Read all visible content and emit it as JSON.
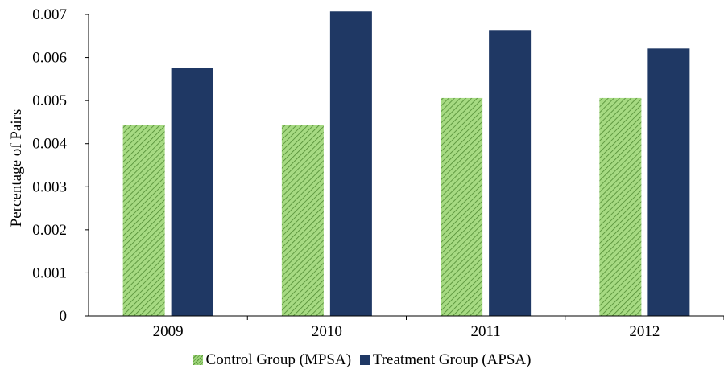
{
  "chart_data": {
    "type": "bar",
    "categories": [
      "2009",
      "2010",
      "2011",
      "2012"
    ],
    "series": [
      {
        "name": "Control Group (MPSA)",
        "values": [
          0.00443,
          0.00443,
          0.00506,
          0.00506
        ],
        "color": "#9dd47a",
        "pattern": "diagonal-hatch"
      },
      {
        "name": "Treatment Group (APSA)",
        "values": [
          0.00576,
          0.00707,
          0.00664,
          0.00621
        ],
        "color": "#1f3864"
      }
    ],
    "ylabel": "Percentage of Pairs",
    "xlabel": "",
    "ylim": [
      0,
      0.007
    ],
    "yticks": [
      "0",
      "0.001",
      "0.002",
      "0.003",
      "0.004",
      "0.005",
      "0.006",
      "0.007"
    ],
    "grid": false,
    "legend_position": "bottom"
  }
}
